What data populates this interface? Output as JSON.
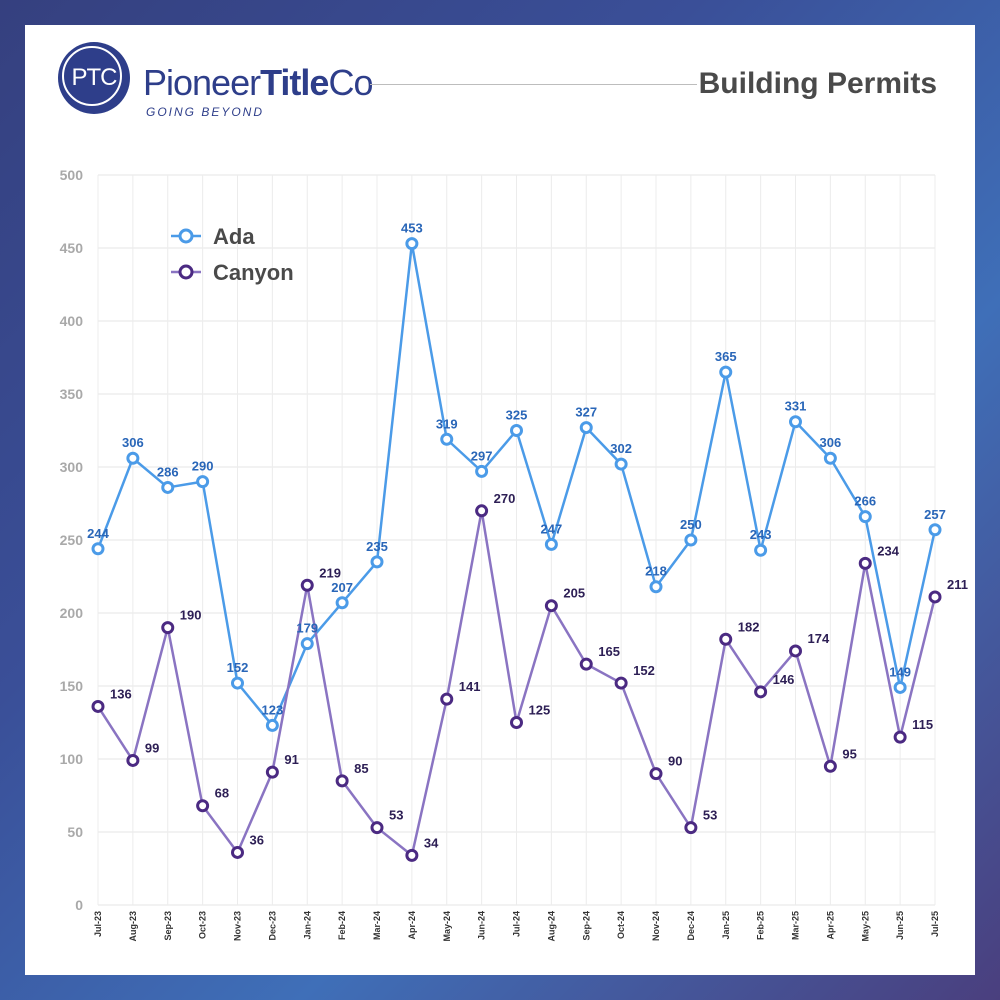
{
  "brand": {
    "monogram": "PTC",
    "name_part1": "Pioneer",
    "name_part2": "Title",
    "name_part3": "Co",
    "tagline": "GOING BEYOND"
  },
  "header": {
    "title": "Building Permits"
  },
  "colors": {
    "ada": "#4b9be8",
    "ada_label": "#2966b8",
    "canyon": "#8a74c2",
    "canyon_marker": "#4b2a82",
    "canyon_label": "#2d1f55"
  },
  "chart_data": {
    "type": "line",
    "title": "Building Permits",
    "xlabel": "",
    "ylabel": "",
    "ylim": [
      0,
      500
    ],
    "yticks": [
      0,
      50,
      100,
      150,
      200,
      250,
      300,
      350,
      400,
      450,
      500
    ],
    "grid": true,
    "legend": "top-left",
    "categories": [
      "Jul-23",
      "Aug-23",
      "Sep-23",
      "Oct-23",
      "Nov-23",
      "Dec-23",
      "Jan-24",
      "Feb-24",
      "Mar-24",
      "Apr-24",
      "May-24",
      "Jun-24",
      "Jul-24",
      "Aug-24",
      "Sep-24",
      "Oct-24",
      "Nov-24",
      "Dec-24",
      "Jan-25",
      "Feb-25",
      "Mar-25",
      "Apr-25",
      "May-25",
      "Jun-25",
      "Jul-25"
    ],
    "series": [
      {
        "name": "Ada",
        "values": [
          244,
          306,
          286,
          290,
          152,
          123,
          179,
          207,
          235,
          453,
          319,
          297,
          325,
          247,
          327,
          302,
          218,
          250,
          365,
          243,
          331,
          306,
          266,
          149,
          257
        ]
      },
      {
        "name": "Canyon",
        "values": [
          136,
          99,
          190,
          68,
          36,
          91,
          219,
          85,
          53,
          34,
          141,
          270,
          125,
          205,
          165,
          152,
          90,
          53,
          182,
          146,
          174,
          95,
          234,
          115,
          211
        ]
      }
    ]
  }
}
